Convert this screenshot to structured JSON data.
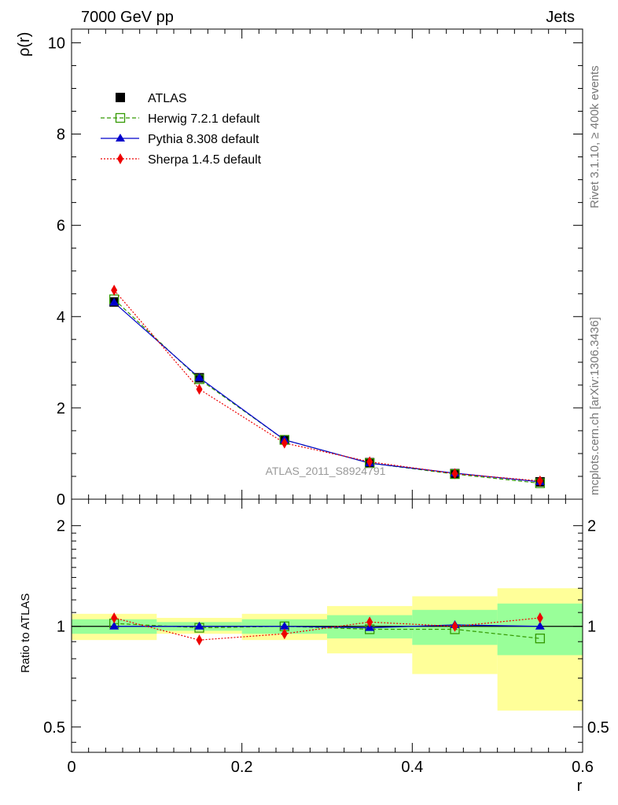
{
  "header": {
    "left": "7000 GeV pp",
    "right": "Jets"
  },
  "side_text": {
    "rivet": "Rivet 3.1.10, ≥ 400k events",
    "mcplots": "mcplots.cern.ch [arXiv:1306.3436]"
  },
  "watermark": "ATLAS_2011_S8924791",
  "colors": {
    "atlas": "#000000",
    "herwig": "#339900",
    "pythia": "#0000cc",
    "sherpa": "#ee0000",
    "band_inner": "#99ff99",
    "band_outer": "#ffff99"
  },
  "chart_data": [
    {
      "id": "main",
      "type": "line",
      "ylabel": "ρ(r)",
      "xlim": [
        0,
        0.6
      ],
      "ylim": [
        0,
        10.3
      ],
      "y_ticks": [
        "0",
        "2",
        "4",
        "6",
        "8",
        "10"
      ],
      "x": [
        0.05,
        0.15,
        0.25,
        0.35,
        0.45,
        0.55
      ],
      "series": [
        {
          "name": "ATLAS",
          "marker": "square-filled",
          "values": [
            4.32,
            2.66,
            1.3,
            0.8,
            0.56,
            0.38
          ]
        },
        {
          "name": "Herwig 7.2.1 default",
          "marker": "square-open",
          "style": "dashed",
          "values": [
            4.38,
            2.63,
            1.3,
            0.79,
            0.55,
            0.35
          ]
        },
        {
          "name": "Pythia 8.308 default",
          "marker": "triangle",
          "style": "solid",
          "values": [
            4.31,
            2.66,
            1.3,
            0.79,
            0.57,
            0.38
          ]
        },
        {
          "name": "Sherpa 1.4.5 default",
          "marker": "diamond",
          "style": "dotted",
          "values": [
            4.58,
            2.41,
            1.23,
            0.82,
            0.56,
            0.4
          ]
        }
      ],
      "legend_position": "top-left"
    },
    {
      "id": "ratio",
      "type": "line",
      "ylabel": "Ratio to ATLAS",
      "xlabel": "r",
      "xlim": [
        0,
        0.6
      ],
      "ylim": [
        0.42,
        2.4
      ],
      "y_scale": "log",
      "x_ticks": [
        "0",
        "0.2",
        "0.4",
        "0.6"
      ],
      "y_ticks": [
        "0.5",
        "1",
        "2"
      ],
      "x": [
        0.05,
        0.15,
        0.25,
        0.35,
        0.45,
        0.55
      ],
      "bands": [
        {
          "x0": 0.0,
          "x1": 0.1,
          "inner": [
            0.95,
            1.05
          ],
          "outer": [
            0.91,
            1.09
          ]
        },
        {
          "x0": 0.1,
          "x1": 0.2,
          "inner": [
            0.97,
            1.03
          ],
          "outer": [
            0.95,
            1.06
          ]
        },
        {
          "x0": 0.2,
          "x1": 0.3,
          "inner": [
            0.95,
            1.05
          ],
          "outer": [
            0.91,
            1.09
          ]
        },
        {
          "x0": 0.3,
          "x1": 0.4,
          "inner": [
            0.92,
            1.08
          ],
          "outer": [
            0.83,
            1.15
          ]
        },
        {
          "x0": 0.4,
          "x1": 0.5,
          "inner": [
            0.88,
            1.12
          ],
          "outer": [
            0.72,
            1.23
          ]
        },
        {
          "x0": 0.5,
          "x1": 0.6,
          "inner": [
            0.82,
            1.17
          ],
          "outer": [
            0.56,
            1.3
          ]
        }
      ],
      "series": [
        {
          "name": "Herwig 7.2.1 default",
          "values": [
            1.02,
            0.99,
            1.0,
            0.98,
            0.98,
            0.92
          ]
        },
        {
          "name": "Pythia 8.308 default",
          "values": [
            1.0,
            1.0,
            1.0,
            0.99,
            1.01,
            1.0
          ]
        },
        {
          "name": "Sherpa 1.4.5 default",
          "values": [
            1.06,
            0.91,
            0.95,
            1.03,
            1.0,
            1.06
          ]
        }
      ]
    }
  ]
}
